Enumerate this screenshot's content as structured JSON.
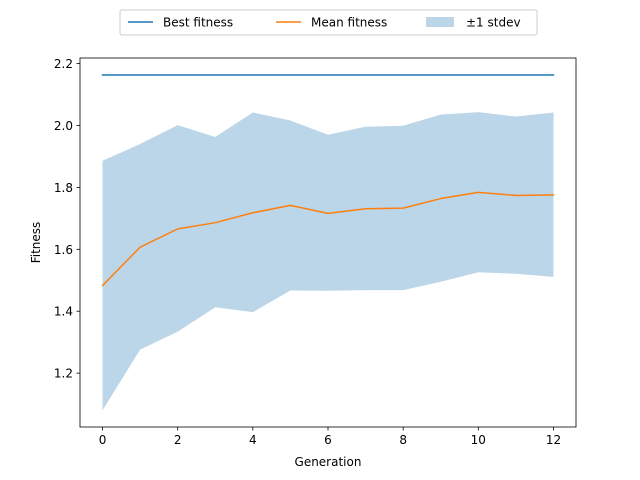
{
  "chart_data": {
    "type": "line",
    "title": "",
    "xlabel": "Generation",
    "ylabel": "Fitness",
    "xlim": [
      -0.6,
      12.6
    ],
    "ylim": [
      1.026,
      2.218
    ],
    "x_ticks": [
      0,
      2,
      4,
      6,
      8,
      10,
      12
    ],
    "y_ticks": [
      1.2,
      1.4,
      1.6,
      1.8,
      2.0,
      2.2
    ],
    "x_tick_labels": [
      "0",
      "2",
      "4",
      "6",
      "8",
      "10",
      "12"
    ],
    "y_tick_labels": [
      "1.2",
      "1.4",
      "1.6",
      "1.8",
      "2.0",
      "2.2"
    ],
    "x": [
      0,
      1,
      2,
      3,
      4,
      5,
      6,
      7,
      8,
      9,
      10,
      11,
      12
    ],
    "series": [
      {
        "name": "Best fitness",
        "color": "#1f77b4",
        "values": [
          2.163,
          2.163,
          2.163,
          2.163,
          2.163,
          2.163,
          2.163,
          2.163,
          2.163,
          2.163,
          2.163,
          2.163,
          2.163
        ]
      },
      {
        "name": "Mean fitness",
        "color": "#ff7f0e",
        "values": [
          1.483,
          1.607,
          1.666,
          1.686,
          1.718,
          1.742,
          1.716,
          1.731,
          1.733,
          1.764,
          1.784,
          1.774,
          1.776
        ]
      }
    ],
    "band": {
      "name": "±1 stdev",
      "color": "#1f77b4",
      "opacity": 0.3,
      "lower": [
        1.08,
        1.276,
        1.334,
        1.413,
        1.397,
        1.467,
        1.466,
        1.468,
        1.468,
        1.495,
        1.526,
        1.521,
        1.511
      ],
      "upper": [
        1.886,
        1.94,
        2.001,
        1.963,
        2.042,
        2.016,
        1.97,
        1.996,
        1.999,
        2.035,
        2.043,
        2.029,
        2.042
      ]
    },
    "grid": false,
    "legend_position": "top-center"
  }
}
